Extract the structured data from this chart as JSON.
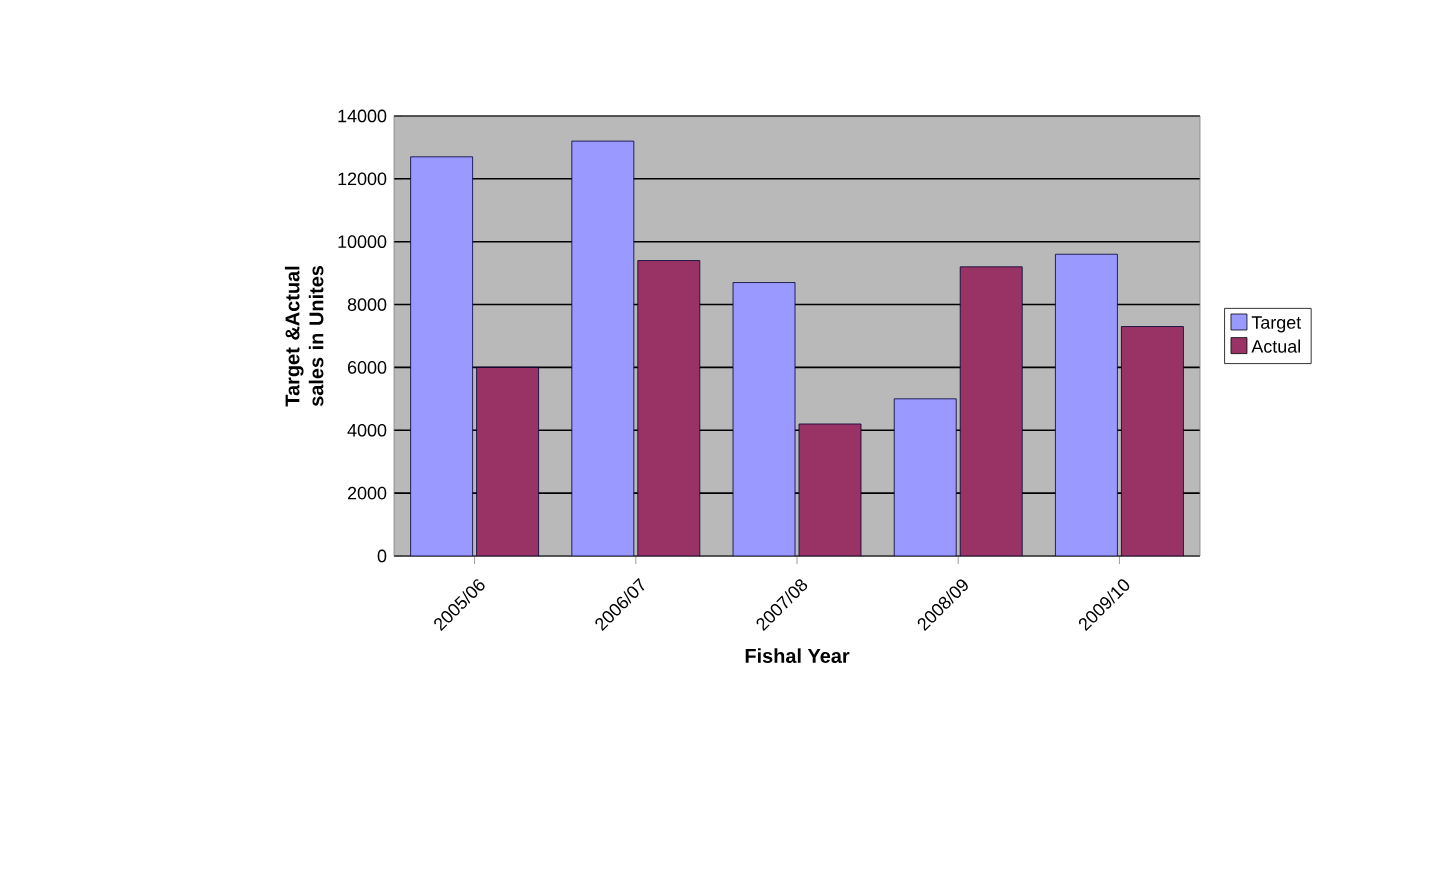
{
  "chart_data": {
    "type": "bar",
    "xlabel": "Fishal Year",
    "ylabel": "Target &Actual sales in Unites",
    "categories": [
      "2005/06",
      "2006/07",
      "2007/08",
      "2008/09",
      "2009/10"
    ],
    "series": [
      {
        "name": "Target",
        "color": "#9999ff",
        "values": [
          12700,
          13200,
          8700,
          5000,
          9600
        ]
      },
      {
        "name": "Actual",
        "color": "#993366",
        "values": [
          6000,
          9400,
          4200,
          9200,
          7300
        ]
      }
    ],
    "ylim": [
      0,
      14000
    ],
    "yticks": [
      0,
      2000,
      4000,
      6000,
      8000,
      10000,
      12000,
      14000
    ],
    "grid": "y",
    "legend": "right"
  }
}
